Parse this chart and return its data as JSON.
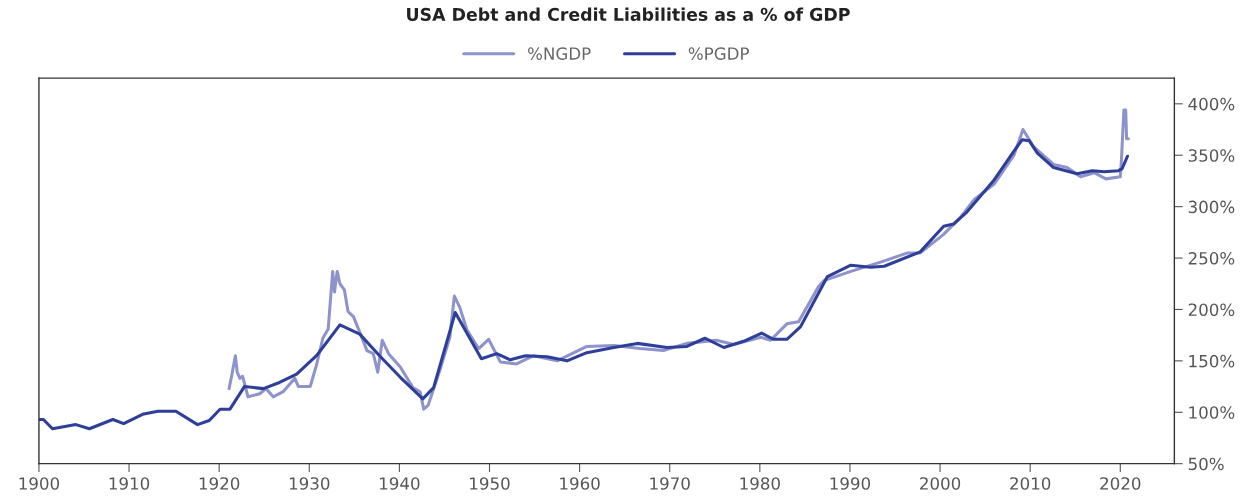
{
  "chart_data": {
    "type": "line",
    "title": "USA Debt and Credit Liabilities as a % of GDP",
    "legend": "top",
    "grid": false,
    "xlim": [
      1900,
      2026
    ],
    "xticks": [
      1900,
      1910,
      1920,
      1930,
      1940,
      1950,
      1960,
      1970,
      1980,
      1990,
      2000,
      2010,
      2020
    ],
    "ylim": [
      50,
      425
    ],
    "yticks": [
      {
        "value": 50,
        "label": "50%"
      },
      {
        "value": 100,
        "label": "100%"
      },
      {
        "value": 150,
        "label": "150%"
      },
      {
        "value": 200,
        "label": "200%"
      },
      {
        "value": 250,
        "label": "250%"
      },
      {
        "value": 300,
        "label": "300%"
      },
      {
        "value": 350,
        "label": "350%"
      },
      {
        "value": 400,
        "label": "400%"
      }
    ],
    "series": [
      {
        "name": "%NGDP",
        "color": "#8f93cc",
        "x": [
          1921.1,
          1921.4,
          1921.8,
          1922.0,
          1922.3,
          1922.6,
          1923.2,
          1924.5,
          1925.2,
          1926.0,
          1927.1,
          1928.4,
          1928.8,
          1930.1,
          1930.8,
          1931.5,
          1932.1,
          1932.6,
          1932.8,
          1933.1,
          1933.4,
          1933.9,
          1934.3,
          1934.9,
          1935.6,
          1936.4,
          1937.1,
          1937.6,
          1938.1,
          1938.8,
          1940.1,
          1941.5,
          1942.3,
          1942.7,
          1943.2,
          1944.5,
          1945.6,
          1946.1,
          1946.7,
          1947.5,
          1948.8,
          1949.9,
          1951.2,
          1953.0,
          1954.9,
          1957.5,
          1960.8,
          1963.8,
          1966.7,
          1969.3,
          1971.9,
          1975.2,
          1977.1,
          1980.1,
          1981.2,
          1983.0,
          1984.3,
          1986.5,
          1987.1,
          1990.1,
          1993.4,
          1996.4,
          1997.8,
          2000.4,
          2002.3,
          2003.8,
          2006.0,
          2008.2,
          2009.2,
          2010.4,
          2012.6,
          2014.1,
          2015.6,
          2017.1,
          2018.4,
          2020.0,
          2020.1,
          2020.4,
          2020.6,
          2020.7,
          2020.9
        ],
        "values": [
          123,
          136,
          155,
          139,
          133,
          135,
          115,
          118,
          123,
          115,
          120,
          133,
          125,
          125,
          146,
          172,
          181,
          237,
          217,
          237,
          225,
          219,
          198,
          193,
          178,
          160,
          157,
          139,
          170,
          157,
          144,
          124,
          120,
          103,
          107,
          141,
          173,
          213,
          202,
          180,
          162,
          171,
          149,
          147,
          155,
          150,
          164,
          165,
          162,
          160,
          167,
          170,
          166,
          173,
          170,
          186,
          188,
          222,
          228,
          237,
          246,
          255,
          255,
          273,
          290,
          307,
          322,
          350,
          375,
          358,
          341,
          338,
          329,
          333,
          327,
          329,
          341,
          394,
          394,
          366,
          366
        ]
      },
      {
        "name": "%PGDP",
        "color": "#2e3f99",
        "x": [
          1900,
          1900.5,
          1901.5,
          1904.1,
          1905.6,
          1908.2,
          1909.4,
          1911.5,
          1913.2,
          1915.2,
          1917.6,
          1918.9,
          1920.1,
          1921.2,
          1922.8,
          1924.9,
          1926.7,
          1928.6,
          1930.8,
          1933.4,
          1935.6,
          1937.8,
          1940.1,
          1942.6,
          1943.8,
          1946.2,
          1949.1,
          1950.8,
          1952.3,
          1954.0,
          1956.4,
          1958.6,
          1960.8,
          1963.8,
          1966.4,
          1969.7,
          1971.9,
          1973.9,
          1976.0,
          1978.2,
          1980.2,
          1981.5,
          1983.0,
          1984.5,
          1987.5,
          1990.1,
          1992.3,
          1993.8,
          1997.8,
          2000.4,
          2001.5,
          2003.0,
          2006.0,
          2008.2,
          2009.1,
          2009.9,
          2010.8,
          2012.6,
          2015.2,
          2016.9,
          2018.2,
          2019.8,
          2020.2,
          2020.8
        ],
        "values": [
          93,
          93,
          84,
          88,
          84,
          93,
          89,
          98,
          101,
          101,
          88,
          92,
          103,
          103,
          125,
          123,
          129,
          137,
          155,
          185,
          176,
          155,
          134,
          113,
          124,
          197,
          152,
          157,
          151,
          155,
          154,
          150,
          158,
          163,
          167,
          163,
          164,
          172,
          163,
          169,
          177,
          171,
          171,
          183,
          232,
          243,
          241,
          242,
          256,
          281,
          283,
          295,
          326,
          354,
          365,
          364,
          352,
          338,
          332,
          335,
          334,
          335,
          337,
          349
        ]
      }
    ]
  }
}
